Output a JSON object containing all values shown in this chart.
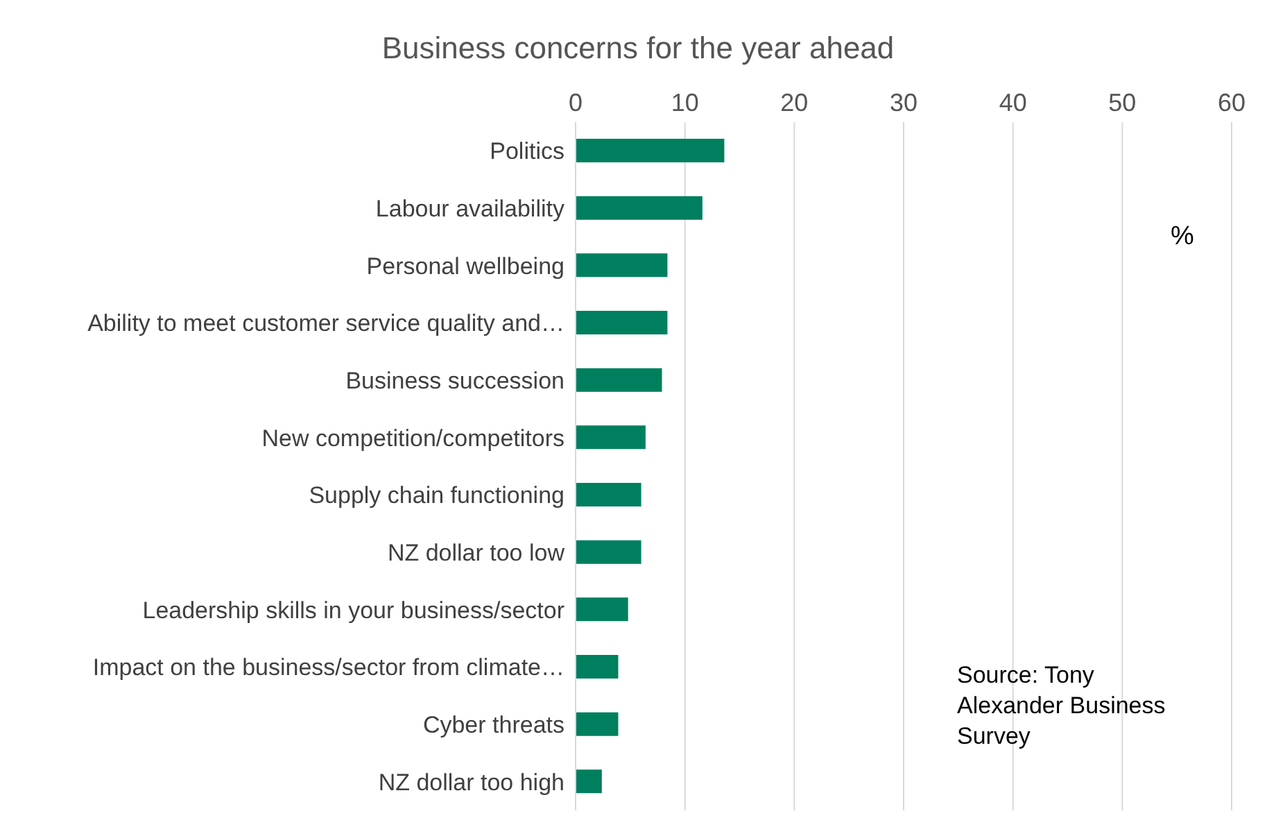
{
  "chart_data": {
    "type": "bar",
    "orientation": "horizontal",
    "title": "Business concerns for the year ahead",
    "categories": [
      "Politics",
      "Labour availability",
      "Personal wellbeing",
      "Ability to meet customer service quality and…",
      "Business succession",
      "New competition/competitors",
      "Supply chain functioning",
      "NZ dollar too low",
      "Leadership skills in your business/sector",
      "Impact on the business/sector from climate…",
      "Cyber threats",
      "NZ dollar too high"
    ],
    "values": [
      13.6,
      11.6,
      8.4,
      8.4,
      7.9,
      6.4,
      6.0,
      6.0,
      4.8,
      3.9,
      3.9,
      2.4
    ],
    "color": "#007f5f",
    "xlim": [
      0,
      60
    ],
    "xticks": [
      0,
      10,
      20,
      30,
      40,
      50,
      60
    ],
    "grid": "x",
    "annotations": [
      "%",
      "Source: Tony Alexander Business Survey"
    ]
  }
}
